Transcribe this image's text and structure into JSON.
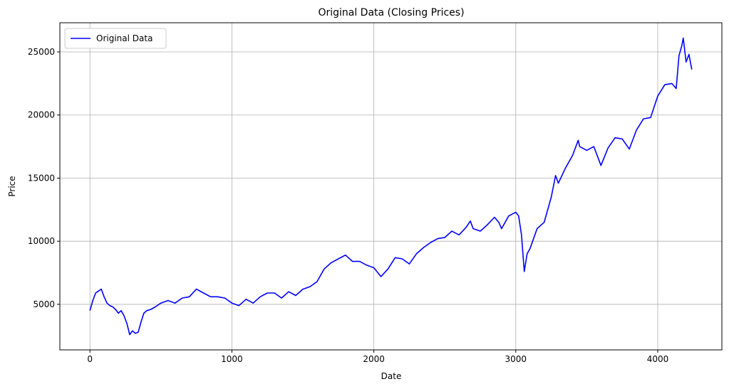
{
  "chart_data": {
    "type": "line",
    "title": "Original Data (Closing Prices)",
    "xlabel": "Date",
    "ylabel": "Price",
    "xlim": [
      -212,
      4452
    ],
    "ylim": [
      1390,
      27310
    ],
    "xticks": [
      0,
      1000,
      2000,
      3000,
      4000
    ],
    "yticks": [
      5000,
      10000,
      15000,
      20000,
      25000
    ],
    "grid": true,
    "legend_position": "top-left",
    "series": [
      {
        "name": "Original Data",
        "color": "#0000ff",
        "x": [
          0,
          20,
          40,
          60,
          80,
          100,
          120,
          140,
          160,
          180,
          200,
          220,
          240,
          260,
          280,
          300,
          320,
          340,
          360,
          380,
          400,
          430,
          460,
          500,
          550,
          600,
          650,
          700,
          750,
          800,
          850,
          900,
          950,
          1000,
          1050,
          1100,
          1150,
          1200,
          1250,
          1300,
          1350,
          1400,
          1450,
          1500,
          1550,
          1600,
          1650,
          1700,
          1750,
          1800,
          1850,
          1900,
          1950,
          2000,
          2050,
          2100,
          2150,
          2200,
          2250,
          2300,
          2350,
          2400,
          2450,
          2500,
          2550,
          2600,
          2650,
          2680,
          2700,
          2750,
          2800,
          2850,
          2880,
          2900,
          2950,
          3000,
          3020,
          3040,
          3060,
          3080,
          3100,
          3150,
          3200,
          3250,
          3280,
          3300,
          3350,
          3400,
          3440,
          3450,
          3500,
          3550,
          3600,
          3650,
          3700,
          3750,
          3800,
          3850,
          3900,
          3950,
          4000,
          4050,
          4100,
          4130,
          4150,
          4170,
          4180,
          4200,
          4220,
          4240
        ],
        "y": [
          4500,
          5300,
          5900,
          6050,
          6200,
          5600,
          5100,
          4900,
          4800,
          4600,
          4300,
          4500,
          4100,
          3500,
          2600,
          2900,
          2700,
          2800,
          3600,
          4300,
          4500,
          4600,
          4800,
          5100,
          5300,
          5100,
          5500,
          5600,
          6200,
          5900,
          5600,
          5600,
          5500,
          5100,
          4900,
          5400,
          5100,
          5600,
          5900,
          5900,
          5500,
          6000,
          5700,
          6200,
          6400,
          6800,
          7800,
          8300,
          8600,
          8900,
          8400,
          8400,
          8100,
          7900,
          7200,
          7800,
          8700,
          8600,
          8200,
          9000,
          9500,
          9900,
          10200,
          10300,
          10800,
          10500,
          11100,
          11600,
          11000,
          10800,
          11300,
          11900,
          11500,
          11000,
          12000,
          12300,
          12000,
          10500,
          7600,
          9000,
          9400,
          11000,
          11500,
          13500,
          15200,
          14600,
          15800,
          16800,
          18000,
          17500,
          17200,
          17500,
          16000,
          17400,
          18200,
          18100,
          17300,
          18800,
          19700,
          19800,
          21500,
          22400,
          22500,
          22100,
          24700,
          25500,
          26100,
          24200,
          24800,
          23600
        ]
      }
    ]
  }
}
